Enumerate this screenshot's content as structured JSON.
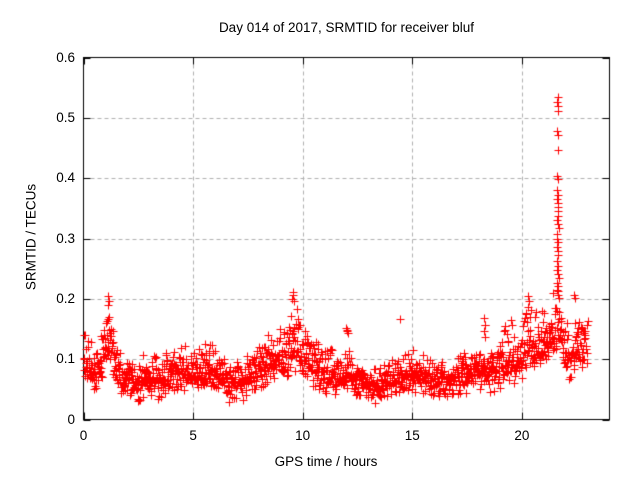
{
  "window": {
    "background": "#ffffff"
  },
  "colors": {
    "marker": "#ff0000",
    "grid": "#b0b0b0",
    "border": "#000000",
    "text": "#000000",
    "background": "#ffffff"
  },
  "chart_data": {
    "type": "scatter",
    "title": "Day 014 of 2017, SRMTID for receiver bluf",
    "xlabel": "GPS time / hours",
    "ylabel": "SRMTID / TECUs",
    "series_name": "SRMTID",
    "xlim": [
      0,
      24
    ],
    "ylim": [
      0,
      0.6
    ],
    "xticks": [
      0,
      5,
      10,
      15,
      20
    ],
    "xtick_labels": [
      "0",
      "5",
      "10",
      "15",
      "20"
    ],
    "yticks": [
      0,
      0.1,
      0.2,
      0.3,
      0.4,
      0.5,
      0.6
    ],
    "ytick_labels": [
      "0",
      "0.1",
      "0.2",
      "0.3",
      "0.4",
      "0.5",
      "0.6"
    ],
    "grid": {
      "show": true,
      "style": "dashed",
      "color": "#b0b0b0"
    },
    "marker": {
      "shape": "plus",
      "color": "#ff0000",
      "size": 8
    },
    "x_data_range": [
      0,
      23.0
    ],
    "points_per_hour": 72,
    "band_profile_comment": "nodes [x_hours, y_low, y_mid, y_high] of the dense scatter band read from the plot; points are synthesized between nodes",
    "band_profile": [
      [
        0.0,
        0.05,
        0.09,
        0.16
      ],
      [
        0.25,
        0.05,
        0.085,
        0.15
      ],
      [
        0.5,
        0.04,
        0.075,
        0.12
      ],
      [
        0.75,
        0.05,
        0.09,
        0.14
      ],
      [
        1.0,
        0.07,
        0.12,
        0.18
      ],
      [
        1.15,
        0.09,
        0.14,
        0.2
      ],
      [
        1.3,
        0.07,
        0.115,
        0.17
      ],
      [
        1.5,
        0.05,
        0.085,
        0.13
      ],
      [
        1.75,
        0.04,
        0.07,
        0.11
      ],
      [
        2.0,
        0.03,
        0.065,
        0.11
      ],
      [
        2.25,
        0.03,
        0.06,
        0.1
      ],
      [
        2.5,
        0.025,
        0.06,
        0.1
      ],
      [
        2.75,
        0.03,
        0.065,
        0.11
      ],
      [
        3.0,
        0.03,
        0.065,
        0.1
      ],
      [
        3.25,
        0.035,
        0.07,
        0.12
      ],
      [
        3.5,
        0.03,
        0.07,
        0.12
      ],
      [
        3.75,
        0.035,
        0.075,
        0.13
      ],
      [
        4.0,
        0.03,
        0.07,
        0.11
      ],
      [
        4.25,
        0.035,
        0.075,
        0.125
      ],
      [
        4.5,
        0.04,
        0.08,
        0.14
      ],
      [
        4.75,
        0.04,
        0.08,
        0.135
      ],
      [
        5.0,
        0.04,
        0.075,
        0.12
      ],
      [
        5.25,
        0.04,
        0.075,
        0.125
      ],
      [
        5.5,
        0.045,
        0.08,
        0.13
      ],
      [
        5.75,
        0.05,
        0.085,
        0.14
      ],
      [
        6.0,
        0.04,
        0.08,
        0.13
      ],
      [
        6.25,
        0.04,
        0.075,
        0.12
      ],
      [
        6.5,
        0.035,
        0.07,
        0.11
      ],
      [
        6.75,
        0.02,
        0.06,
        0.1
      ],
      [
        7.0,
        0.03,
        0.06,
        0.1
      ],
      [
        7.25,
        0.03,
        0.065,
        0.1
      ],
      [
        7.5,
        0.035,
        0.07,
        0.11
      ],
      [
        7.75,
        0.04,
        0.075,
        0.12
      ],
      [
        8.0,
        0.045,
        0.085,
        0.13
      ],
      [
        8.25,
        0.05,
        0.09,
        0.14
      ],
      [
        8.5,
        0.045,
        0.09,
        0.15
      ],
      [
        8.75,
        0.05,
        0.1,
        0.16
      ],
      [
        9.0,
        0.06,
        0.105,
        0.16
      ],
      [
        9.25,
        0.06,
        0.11,
        0.17
      ],
      [
        9.5,
        0.07,
        0.12,
        0.2
      ],
      [
        9.75,
        0.07,
        0.125,
        0.2
      ],
      [
        10.0,
        0.06,
        0.11,
        0.17
      ],
      [
        10.25,
        0.05,
        0.1,
        0.15
      ],
      [
        10.5,
        0.05,
        0.09,
        0.14
      ],
      [
        10.75,
        0.04,
        0.085,
        0.14
      ],
      [
        11.0,
        0.04,
        0.08,
        0.13
      ],
      [
        11.25,
        0.04,
        0.075,
        0.12
      ],
      [
        11.5,
        0.035,
        0.07,
        0.11
      ],
      [
        11.75,
        0.04,
        0.07,
        0.12
      ],
      [
        12.0,
        0.04,
        0.075,
        0.125
      ],
      [
        12.25,
        0.035,
        0.07,
        0.11
      ],
      [
        12.5,
        0.03,
        0.065,
        0.1
      ],
      [
        12.75,
        0.03,
        0.06,
        0.1
      ],
      [
        13.0,
        0.03,
        0.06,
        0.095
      ],
      [
        13.25,
        0.025,
        0.055,
        0.09
      ],
      [
        13.5,
        0.025,
        0.055,
        0.09
      ],
      [
        13.75,
        0.03,
        0.06,
        0.1
      ],
      [
        14.0,
        0.03,
        0.065,
        0.1
      ],
      [
        14.25,
        0.035,
        0.07,
        0.11
      ],
      [
        14.5,
        0.04,
        0.07,
        0.11
      ],
      [
        14.75,
        0.04,
        0.075,
        0.12
      ],
      [
        15.0,
        0.04,
        0.075,
        0.12
      ],
      [
        15.25,
        0.04,
        0.07,
        0.115
      ],
      [
        15.5,
        0.035,
        0.07,
        0.11
      ],
      [
        15.75,
        0.035,
        0.07,
        0.11
      ],
      [
        16.0,
        0.03,
        0.065,
        0.105
      ],
      [
        16.25,
        0.035,
        0.07,
        0.11
      ],
      [
        16.5,
        0.03,
        0.065,
        0.105
      ],
      [
        16.75,
        0.03,
        0.065,
        0.1
      ],
      [
        17.0,
        0.035,
        0.07,
        0.11
      ],
      [
        17.25,
        0.04,
        0.07,
        0.11
      ],
      [
        17.5,
        0.04,
        0.075,
        0.12
      ],
      [
        17.75,
        0.04,
        0.08,
        0.12
      ],
      [
        18.0,
        0.04,
        0.08,
        0.12
      ],
      [
        18.25,
        0.045,
        0.08,
        0.13
      ],
      [
        18.5,
        0.04,
        0.075,
        0.12
      ],
      [
        18.75,
        0.04,
        0.08,
        0.13
      ],
      [
        19.0,
        0.045,
        0.085,
        0.14
      ],
      [
        19.25,
        0.05,
        0.09,
        0.17
      ],
      [
        19.5,
        0.05,
        0.095,
        0.17
      ],
      [
        19.75,
        0.055,
        0.1,
        0.155
      ],
      [
        20.0,
        0.06,
        0.105,
        0.17
      ],
      [
        20.25,
        0.07,
        0.12,
        0.21
      ],
      [
        20.5,
        0.07,
        0.115,
        0.19
      ],
      [
        20.75,
        0.08,
        0.12,
        0.185
      ],
      [
        21.0,
        0.08,
        0.125,
        0.2
      ],
      [
        21.25,
        0.09,
        0.13,
        0.2
      ],
      [
        21.5,
        0.1,
        0.14,
        0.22
      ],
      [
        21.75,
        0.1,
        0.145,
        0.22
      ],
      [
        22.0,
        0.08,
        0.12,
        0.19
      ],
      [
        22.25,
        0.05,
        0.09,
        0.13
      ],
      [
        22.5,
        0.08,
        0.125,
        0.21
      ],
      [
        22.75,
        0.08,
        0.13,
        0.19
      ],
      [
        23.0,
        0.09,
        0.125,
        0.17
      ]
    ],
    "outliers_comment": "individually readable points: the large spike near 21.6 h (max ~0.535 TECU) and other isolated highs",
    "outliers": [
      [
        21.64,
        0.535
      ],
      [
        21.62,
        0.527
      ],
      [
        21.65,
        0.52
      ],
      [
        21.63,
        0.511
      ],
      [
        21.62,
        0.479
      ],
      [
        21.64,
        0.472
      ],
      [
        21.63,
        0.446
      ],
      [
        21.61,
        0.403
      ],
      [
        21.64,
        0.399
      ],
      [
        21.6,
        0.381
      ],
      [
        21.63,
        0.372
      ],
      [
        21.62,
        0.366
      ],
      [
        21.65,
        0.359
      ],
      [
        21.64,
        0.352
      ],
      [
        21.67,
        0.345
      ],
      [
        21.63,
        0.338
      ],
      [
        21.62,
        0.331
      ],
      [
        21.66,
        0.324
      ],
      [
        21.69,
        0.317
      ],
      [
        21.6,
        0.307
      ],
      [
        21.62,
        0.3
      ],
      [
        21.65,
        0.295
      ],
      [
        21.59,
        0.286
      ],
      [
        21.63,
        0.279
      ],
      [
        21.67,
        0.272
      ],
      [
        21.62,
        0.263
      ],
      [
        21.65,
        0.255
      ],
      [
        21.61,
        0.247
      ],
      [
        21.64,
        0.241
      ],
      [
        21.68,
        0.234
      ],
      [
        21.62,
        0.227
      ],
      [
        21.66,
        0.221
      ],
      [
        21.6,
        0.214
      ],
      [
        21.64,
        0.207
      ],
      [
        21.69,
        0.201
      ],
      [
        1.12,
        0.205
      ],
      [
        1.16,
        0.196
      ],
      [
        1.1,
        0.19
      ],
      [
        9.54,
        0.212
      ],
      [
        9.57,
        0.206
      ],
      [
        9.52,
        0.2
      ],
      [
        9.6,
        0.197
      ],
      [
        11.98,
        0.152
      ],
      [
        12.02,
        0.149
      ],
      [
        12.04,
        0.146
      ],
      [
        12.06,
        0.143
      ],
      [
        14.43,
        0.166
      ],
      [
        18.28,
        0.168
      ],
      [
        18.3,
        0.157
      ],
      [
        18.27,
        0.147
      ],
      [
        18.31,
        0.136
      ],
      [
        18.33,
        0.156
      ],
      [
        20.28,
        0.204
      ],
      [
        20.32,
        0.197
      ],
      [
        22.4,
        0.206
      ],
      [
        22.44,
        0.202
      ]
    ],
    "spike": {
      "x_center_hours": 21.65,
      "y_max": 0.535,
      "description": "narrow column of enhanced SRMTID values from ~0.2 up to ~0.535 TECU near 21.6 GPS hours"
    }
  }
}
